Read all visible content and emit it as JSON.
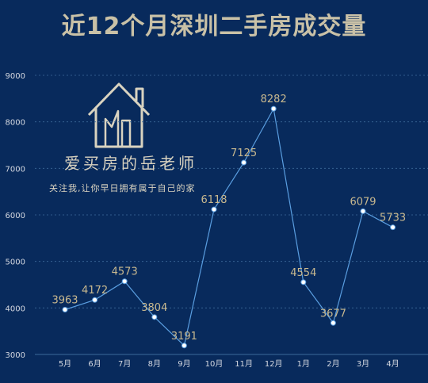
{
  "title": "近12个月深圳二手房成交量",
  "watermark": {
    "name": "爱买房的岳老师",
    "tagline": "关注我,让你早日拥有属于自己的家"
  },
  "colors": {
    "background": "#082a5c",
    "line": "#5a9ee0",
    "point": "#ffffff",
    "data_label": "#c9b98f",
    "tick_label": "#d4d8e0",
    "grid": "#3d6a9a"
  },
  "chart_data": {
    "type": "line",
    "categories": [
      "5月",
      "6月",
      "7月",
      "8月",
      "9月",
      "10月",
      "11月",
      "12月",
      "1月",
      "2月",
      "3月",
      "4月"
    ],
    "values": [
      3963,
      4172,
      4573,
      3804,
      3191,
      6118,
      7125,
      8282,
      4554,
      3677,
      6079,
      5733
    ],
    "ylim": [
      3000,
      9000
    ],
    "yticks": [
      3000,
      4000,
      5000,
      6000,
      7000,
      8000,
      9000
    ],
    "grid": true,
    "legend": false
  }
}
